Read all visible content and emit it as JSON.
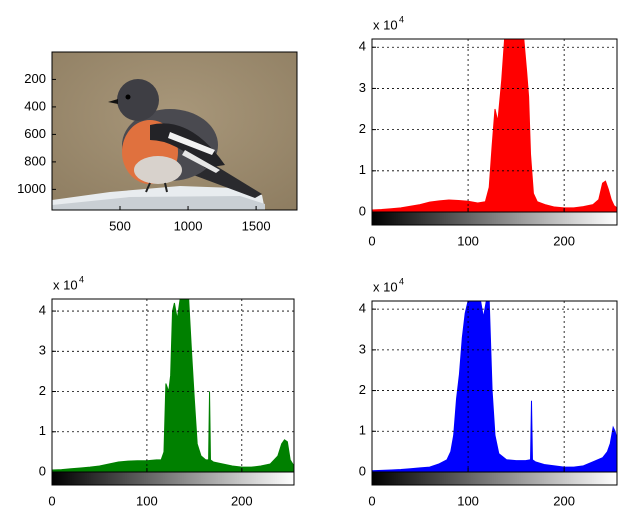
{
  "chart_data": [
    {
      "type": "image",
      "xlim": [
        0.5,
        1800.5
      ],
      "xticks": [
        500,
        1000,
        1500
      ],
      "ylim": [
        0.5,
        1150
      ],
      "yticks": [
        200,
        400,
        600,
        800,
        1000
      ]
    },
    {
      "type": "area",
      "color": "#ff0000",
      "x": [
        0,
        10,
        20,
        30,
        40,
        50,
        60,
        70,
        80,
        90,
        100,
        110,
        118,
        122,
        125,
        128,
        131,
        135,
        138,
        142,
        146,
        150,
        154,
        158,
        161,
        163,
        165,
        168,
        172,
        180,
        190,
        200,
        210,
        220,
        230,
        236,
        240,
        243,
        246,
        249,
        252,
        255
      ],
      "values": [
        0.05,
        0.06,
        0.08,
        0.1,
        0.14,
        0.18,
        0.24,
        0.27,
        0.29,
        0.28,
        0.26,
        0.22,
        0.25,
        0.6,
        1.6,
        2.5,
        2.2,
        3.2,
        4.2,
        4.2,
        4.2,
        4.2,
        4.2,
        4.2,
        3.4,
        2.8,
        1.4,
        0.45,
        0.25,
        0.18,
        0.12,
        0.1,
        0.1,
        0.13,
        0.18,
        0.3,
        0.7,
        0.75,
        0.55,
        0.3,
        0.15,
        0.1
      ],
      "xlim": [
        0,
        255
      ],
      "xticks": [
        0,
        100,
        200
      ],
      "ylim": [
        0,
        4.2
      ],
      "yticks": [
        0,
        1,
        2,
        3,
        4
      ],
      "y_multiplier": "x 10",
      "y_multiplier_exponent": "4",
      "grid": true
    },
    {
      "type": "area",
      "color": "#008000",
      "x": [
        0,
        10,
        20,
        30,
        40,
        50,
        60,
        70,
        80,
        90,
        100,
        110,
        115,
        118,
        120,
        123,
        125,
        127,
        129,
        132,
        135,
        140,
        144,
        147,
        150,
        153,
        157,
        162,
        165,
        166,
        167,
        170,
        180,
        190,
        200,
        210,
        220,
        230,
        238,
        242,
        245,
        248,
        251,
        255
      ],
      "values": [
        0.05,
        0.06,
        0.08,
        0.1,
        0.12,
        0.15,
        0.2,
        0.25,
        0.27,
        0.28,
        0.28,
        0.3,
        0.3,
        0.5,
        2.2,
        2.0,
        2.4,
        4.0,
        4.2,
        3.8,
        4.3,
        4.3,
        4.3,
        3.0,
        1.8,
        0.7,
        0.4,
        0.3,
        0.3,
        2.0,
        0.3,
        0.25,
        0.2,
        0.15,
        0.12,
        0.12,
        0.15,
        0.2,
        0.4,
        0.7,
        0.8,
        0.75,
        0.3,
        0.15
      ],
      "xlim": [
        0,
        255
      ],
      "xticks": [
        0,
        100,
        200
      ],
      "ylim": [
        0,
        4.3
      ],
      "yticks": [
        0,
        1,
        2,
        3,
        4
      ],
      "y_multiplier": "x 10",
      "y_multiplier_exponent": "4",
      "grid": true
    },
    {
      "type": "area",
      "color": "#0000ff",
      "x": [
        0,
        10,
        20,
        30,
        40,
        50,
        60,
        70,
        78,
        82,
        85,
        88,
        91,
        94,
        97,
        100,
        105,
        110,
        113,
        116,
        119,
        122,
        125,
        128,
        132,
        140,
        150,
        160,
        165,
        166,
        167,
        170,
        180,
        190,
        200,
        210,
        220,
        230,
        240,
        245,
        248,
        251,
        253,
        255
      ],
      "values": [
        0.03,
        0.04,
        0.05,
        0.06,
        0.08,
        0.1,
        0.12,
        0.2,
        0.3,
        0.5,
        0.9,
        1.8,
        2.4,
        3.3,
        3.9,
        4.2,
        4.2,
        4.2,
        4.2,
        3.8,
        4.2,
        4.2,
        2.0,
        0.9,
        0.45,
        0.3,
        0.28,
        0.28,
        0.3,
        1.75,
        0.3,
        0.25,
        0.18,
        0.15,
        0.12,
        0.12,
        0.15,
        0.25,
        0.35,
        0.5,
        0.7,
        1.1,
        1.0,
        0.8
      ],
      "xlim": [
        0,
        255
      ],
      "xticks": [
        0,
        100,
        200
      ],
      "ylim": [
        0,
        4.2
      ],
      "yticks": [
        0,
        1,
        2,
        3,
        4
      ],
      "y_multiplier": "x 10",
      "y_multiplier_exponent": "4",
      "grid": true
    }
  ]
}
